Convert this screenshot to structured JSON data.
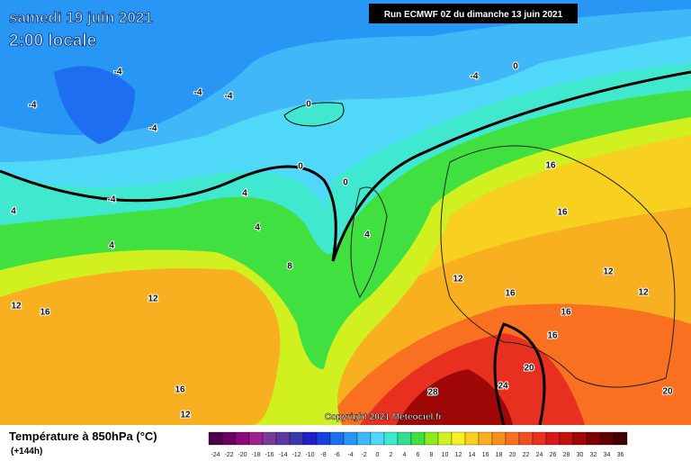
{
  "header": {
    "date": "samedi 19 juin 2021",
    "time": "2:00 locale",
    "run": "Run ECMWF 0Z du dimanche 13 juin 2021"
  },
  "copyright": "Copyright 2021 Meteociel.fr",
  "legend": {
    "title": "Température à 850hPa (°C)",
    "lead": "(+144h)",
    "scale": [
      {
        "value": -24,
        "color": "#4b0048"
      },
      {
        "value": -22,
        "color": "#6a005f"
      },
      {
        "value": -20,
        "color": "#8a0a7a"
      },
      {
        "value": -18,
        "color": "#a0208f"
      },
      {
        "value": -16,
        "color": "#7a3a9a"
      },
      {
        "value": -14,
        "color": "#5a3aa0"
      },
      {
        "value": -12,
        "color": "#3838a8"
      },
      {
        "value": -10,
        "color": "#2020c8"
      },
      {
        "value": -8,
        "color": "#1840e0"
      },
      {
        "value": -6,
        "color": "#1e6ef0"
      },
      {
        "value": -4,
        "color": "#2896f5"
      },
      {
        "value": -2,
        "color": "#40b8f8"
      },
      {
        "value": 0,
        "color": "#50d8f8"
      },
      {
        "value": 2,
        "color": "#40e8d0"
      },
      {
        "value": 4,
        "color": "#30e090"
      },
      {
        "value": 6,
        "color": "#40e040"
      },
      {
        "value": 8,
        "color": "#90e820"
      },
      {
        "value": 10,
        "color": "#d0f020"
      },
      {
        "value": 12,
        "color": "#f8f020"
      },
      {
        "value": 14,
        "color": "#f8d020"
      },
      {
        "value": 16,
        "color": "#f8b020"
      },
      {
        "value": 18,
        "color": "#f89020"
      },
      {
        "value": 20,
        "color": "#f87020"
      },
      {
        "value": 22,
        "color": "#f05020"
      },
      {
        "value": 24,
        "color": "#e83020"
      },
      {
        "value": 26,
        "color": "#d81818"
      },
      {
        "value": 28,
        "color": "#c01010"
      },
      {
        "value": 30,
        "color": "#a00808"
      },
      {
        "value": 32,
        "color": "#800000"
      },
      {
        "value": 34,
        "color": "#600000"
      },
      {
        "value": 36,
        "color": "#400000"
      }
    ]
  },
  "map_labels": [
    -4,
    -4,
    -4,
    -4,
    -4,
    -4,
    -4,
    0,
    0,
    0,
    0,
    4,
    4,
    4,
    4,
    4,
    8,
    12,
    12,
    12,
    12,
    12,
    12,
    16,
    16,
    16,
    16,
    16,
    16,
    16,
    20,
    20,
    24,
    28
  ]
}
